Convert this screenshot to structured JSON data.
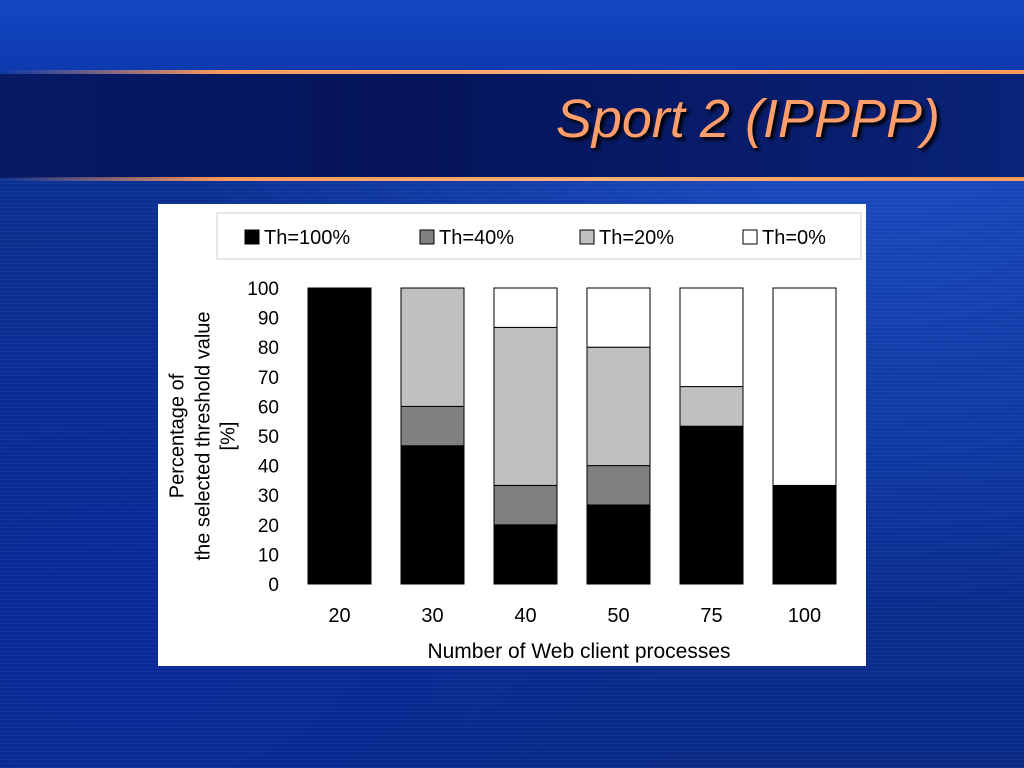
{
  "slide": {
    "title": "Sport 2 (IPPPP)"
  },
  "colors": {
    "title": "#ff9e6b",
    "accent_rule": "#ff9a5c",
    "background": "#0b2f8f"
  },
  "chart_data": {
    "type": "bar",
    "stacked": true,
    "categories": [
      "20",
      "30",
      "40",
      "50",
      "75",
      "100"
    ],
    "series": [
      {
        "name": "Th=100%",
        "color": "#000000",
        "values": [
          100,
          46.7,
          20,
          26.7,
          53.3,
          33.3
        ]
      },
      {
        "name": "Th=40%",
        "color": "#808080",
        "values": [
          0,
          13.3,
          13.3,
          13.3,
          0,
          0
        ]
      },
      {
        "name": "Th=20%",
        "color": "#c0c0c0",
        "values": [
          0,
          40,
          53.4,
          40,
          13.4,
          0
        ]
      },
      {
        "name": "Th=0%",
        "color": "#ffffff",
        "values": [
          0,
          0,
          13.3,
          20,
          33.3,
          66.7
        ]
      }
    ],
    "xlabel": "Number of Web client processes",
    "ylabel_lines": [
      "Percentage of",
      "the selected threshold value",
      "[%]"
    ],
    "ylim": [
      0,
      100
    ],
    "yticks": [
      0,
      10,
      20,
      30,
      40,
      50,
      60,
      70,
      80,
      90,
      100
    ],
    "legend_position": "top"
  }
}
